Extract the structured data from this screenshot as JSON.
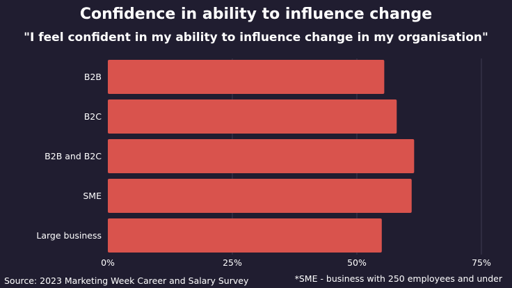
{
  "title": "Confidence in ability to influence change",
  "subtitle": "\"I feel confident in my ability to influence change in my organisation\"",
  "source": "Source: 2023 Marketing Week Career and Salary Survey",
  "footnote": "*SME - business with 250 employees and under",
  "colors": {
    "background": "#201d30",
    "bar": "#d9534d",
    "gridline": "#3e3b52",
    "text": "#ffffff"
  },
  "chart_data": {
    "type": "bar",
    "orientation": "horizontal",
    "categories": [
      "B2B",
      "B2C",
      "B2B and B2C",
      "SME",
      "Large business"
    ],
    "values": [
      55.5,
      58,
      61.5,
      61,
      55
    ],
    "xlim": [
      0,
      75
    ],
    "xticks": [
      0,
      25,
      50,
      75
    ],
    "xtick_labels": [
      "0%",
      "25%",
      "50%",
      "75%"
    ],
    "grid": true
  }
}
